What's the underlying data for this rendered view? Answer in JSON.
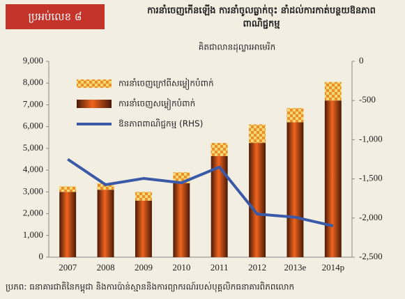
{
  "box_label": "ប្រអប់លេខ ៨",
  "chart_data": {
    "type": "bar",
    "title": "ការនាំចេញកើនឡើង ការនាំចូលធ្លាក់ចុះ នាំដល់ការកាត់បន្ថយឱនភាពពាណិជ្ជកម្ម",
    "subtitle": "គិតជាលានដុល្លារអាមេរិក",
    "categories": [
      "2007",
      "2008",
      "2009",
      "2010",
      "2011",
      "2012",
      "2013e",
      "2014p"
    ],
    "series": [
      {
        "name": "ការនាំចេញក្រៅពីសម្លៀកបំពាក់",
        "color": "#f5c518",
        "values": [
          250,
          300,
          400,
          500,
          600,
          850,
          650,
          850
        ]
      },
      {
        "name": "ការនាំចេញសម្លៀកបំពាក់",
        "color": "#e0561b",
        "values": [
          3000,
          3100,
          2600,
          3400,
          4650,
          5250,
          6200,
          7200
        ]
      },
      {
        "name": "ឱនភាពពាណិជ្ជកម្ម (RHS)",
        "color": "#3a5aa8",
        "type": "line",
        "axis": "y2",
        "values": [
          -1250,
          -1575,
          -1495,
          -1550,
          -1350,
          -1950,
          -1990,
          -2100
        ]
      }
    ],
    "ylim": [
      0,
      9000
    ],
    "yticks": [
      0,
      {
        "value": 1000,
        "label": "1,000"
      },
      {
        "value": 2000,
        "label": "2,000"
      },
      {
        "value": 3000,
        "label": "3,000"
      },
      {
        "value": 4000,
        "label": "4,000"
      },
      {
        "value": 5000,
        "label": "5,000"
      },
      {
        "value": 6000,
        "label": "6,000"
      },
      {
        "value": 7000,
        "label": "7,000"
      },
      {
        "value": 8000,
        "label": "8,000"
      },
      {
        "value": 9000,
        "label": "9,000"
      }
    ],
    "y2lim": [
      -2500,
      0
    ],
    "y2ticks": [
      {
        "value": -2500,
        "label": "-2,500"
      },
      {
        "value": -2000,
        "label": "-2,000"
      },
      {
        "value": -1500,
        "label": "-1,500"
      },
      {
        "value": -1000,
        "label": "-1,000"
      },
      -500,
      0
    ],
    "source": "ប្រភព: ធនាគារជាតិនៃកម្ពុជា និងការប៉ាន់ស្មាននិងការព្យាករណ៍របស់បុគ្គលិកធនាគារពិភពលោក"
  }
}
